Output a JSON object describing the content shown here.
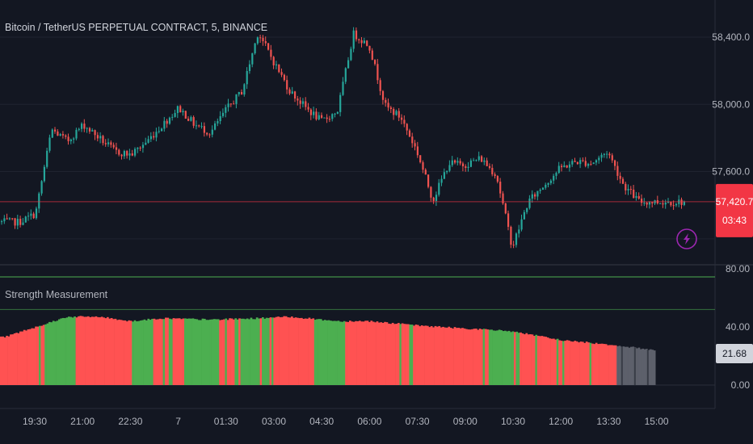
{
  "header": {
    "symbol_title": "Bitcoin / TetherUS PERPETUAL CONTRACT, 5, BINANCE"
  },
  "price_pane": {
    "y_ticks": [
      "58,400.0",
      "58,000.0",
      "57,600.0"
    ],
    "y_tick_values": [
      58400,
      58000,
      57600
    ],
    "current_price": "57,420.7",
    "countdown": "03:43",
    "badge_color": "#f23645",
    "up_color": "#26a69a",
    "down_color": "#ef5350",
    "alert_icon": "lightning-bolt-icon"
  },
  "indicator_pane": {
    "title": "Strength Measurement",
    "y_ticks": [
      "80.00",
      "40.00",
      "0.00"
    ],
    "current_value": "21.68",
    "upper_line_color": "#4caf50",
    "green": "#4caf50",
    "red": "#ff5252",
    "gray": "#5d606b"
  },
  "time_axis": {
    "labels": [
      "19:30",
      "21:00",
      "22:30",
      "7",
      "01:30",
      "03:00",
      "04:30",
      "06:00",
      "07:30",
      "09:00",
      "10:30",
      "12:00",
      "13:30",
      "15:00"
    ]
  },
  "chart_data": {
    "type": "candlestick",
    "title": "Bitcoin / TetherUS PERPETUAL CONTRACT, 5, BINANCE",
    "x_labels": [
      "19:30",
      "21:00",
      "22:30",
      "7",
      "01:30",
      "03:00",
      "04:30",
      "06:00",
      "07:30",
      "09:00",
      "10:30",
      "12:00",
      "13:30",
      "15:00"
    ],
    "price_ylim": [
      57050,
      58580
    ],
    "price_anchors": [
      {
        "time": "19:00",
        "price": 57300
      },
      {
        "time": "19:30",
        "price": 57350
      },
      {
        "time": "20:00",
        "price": 57850
      },
      {
        "time": "20:30",
        "price": 57780
      },
      {
        "time": "21:00",
        "price": 57880
      },
      {
        "time": "22:00",
        "price": 57720
      },
      {
        "time": "22:30",
        "price": 57700
      },
      {
        "time": "23:00",
        "price": 57780
      },
      {
        "time": "00:00",
        "price": 57980
      },
      {
        "time": "00:30",
        "price": 57880
      },
      {
        "time": "01:00",
        "price": 57830
      },
      {
        "time": "01:30",
        "price": 57970
      },
      {
        "time": "02:00",
        "price": 58080
      },
      {
        "time": "02:30",
        "price": 58430
      },
      {
        "time": "03:00",
        "price": 58250
      },
      {
        "time": "03:30",
        "price": 58080
      },
      {
        "time": "04:00",
        "price": 57980
      },
      {
        "time": "04:30",
        "price": 57900
      },
      {
        "time": "05:00",
        "price": 57960
      },
      {
        "time": "05:30",
        "price": 58420
      },
      {
        "time": "06:00",
        "price": 58350
      },
      {
        "time": "06:30",
        "price": 57990
      },
      {
        "time": "07:00",
        "price": 57920
      },
      {
        "time": "07:30",
        "price": 57720
      },
      {
        "time": "08:00",
        "price": 57430
      },
      {
        "time": "08:30",
        "price": 57650
      },
      {
        "time": "09:00",
        "price": 57640
      },
      {
        "time": "09:30",
        "price": 57680
      },
      {
        "time": "10:00",
        "price": 57580
      },
      {
        "time": "10:30",
        "price": 57150
      },
      {
        "time": "11:00",
        "price": 57420
      },
      {
        "time": "11:30",
        "price": 57520
      },
      {
        "time": "12:00",
        "price": 57620
      },
      {
        "time": "12:30",
        "price": 57660
      },
      {
        "time": "13:00",
        "price": 57650
      },
      {
        "time": "13:30",
        "price": 57720
      },
      {
        "time": "14:00",
        "price": 57520
      },
      {
        "time": "14:30",
        "price": 57420
      },
      {
        "time": "15:00",
        "price": 57420
      }
    ],
    "current_price": 57420.7,
    "indicator": {
      "name": "Strength Measurement",
      "ylim": [
        0,
        90
      ],
      "upper_level": 52,
      "current_value": 21.68,
      "profile": [
        {
          "time": "18:30",
          "value": 33
        },
        {
          "time": "19:30",
          "value": 40
        },
        {
          "time": "20:30",
          "value": 47
        },
        {
          "time": "21:30",
          "value": 47
        },
        {
          "time": "22:30",
          "value": 44
        },
        {
          "time": "23:30",
          "value": 46
        },
        {
          "time": "01:00",
          "value": 45
        },
        {
          "time": "02:30",
          "value": 46
        },
        {
          "time": "03:30",
          "value": 47
        },
        {
          "time": "05:00",
          "value": 44
        },
        {
          "time": "06:00",
          "value": 44
        },
        {
          "time": "07:30",
          "value": 41
        },
        {
          "time": "09:00",
          "value": 39
        },
        {
          "time": "10:30",
          "value": 37
        },
        {
          "time": "12:00",
          "value": 31
        },
        {
          "time": "13:30",
          "value": 28
        },
        {
          "time": "15:00",
          "value": 24
        }
      ],
      "color_segments": [
        {
          "from": "18:30",
          "to": "19:45",
          "color": "red"
        },
        {
          "from": "19:45",
          "to": "20:45",
          "color": "green"
        },
        {
          "from": "20:45",
          "to": "22:30",
          "color": "red"
        },
        {
          "from": "22:30",
          "to": "23:10",
          "color": "green"
        },
        {
          "from": "23:10",
          "to": "00:10",
          "color": "red"
        },
        {
          "from": "00:10",
          "to": "01:15",
          "color": "green"
        },
        {
          "from": "01:15",
          "to": "01:45",
          "color": "red"
        },
        {
          "from": "01:45",
          "to": "02:50",
          "color": "green"
        },
        {
          "from": "02:50",
          "to": "04:15",
          "color": "red"
        },
        {
          "from": "04:15",
          "to": "05:15",
          "color": "green"
        },
        {
          "from": "05:15",
          "to": "05:50",
          "color": "red"
        },
        {
          "from": "05:50",
          "to": "09:45",
          "color": "red"
        },
        {
          "from": "09:45",
          "to": "10:40",
          "color": "green"
        },
        {
          "from": "10:40",
          "to": "13:45",
          "color": "red"
        },
        {
          "from": "13:45",
          "to": "15:00",
          "color": "gray"
        }
      ]
    }
  }
}
